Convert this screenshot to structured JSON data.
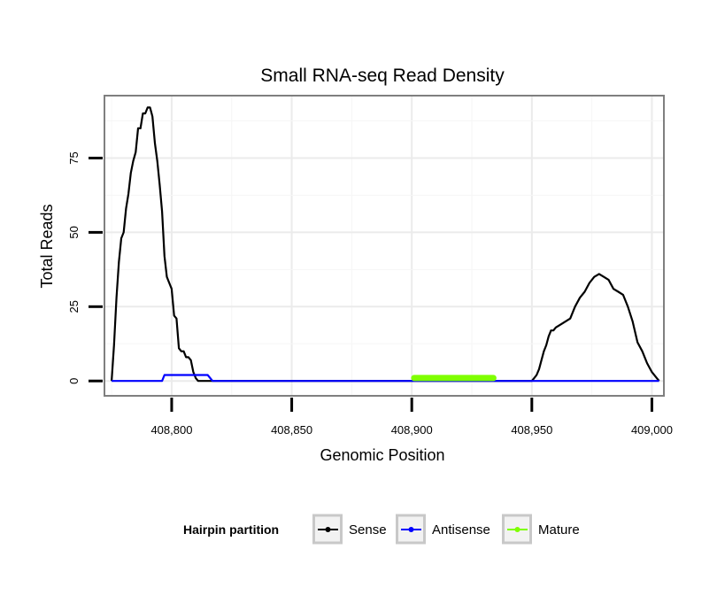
{
  "chart_data": {
    "type": "line",
    "title": "Small RNA-seq Read Density",
    "xlabel": "Genomic Position",
    "ylabel": "Total Reads",
    "xlim": [
      408772,
      409005
    ],
    "ylim": [
      -5,
      96
    ],
    "x_ticks": [
      408800,
      408850,
      408900,
      408950,
      409000
    ],
    "x_tick_labels": [
      "408,800",
      "408,850",
      "408,900",
      "408,950",
      "409,000"
    ],
    "y_ticks": [
      0,
      25,
      50,
      75
    ],
    "y_tick_labels": [
      "0",
      "25",
      "50",
      "75"
    ],
    "grid": true,
    "legend": {
      "title": "Hairpin partition",
      "position": "bottom",
      "entries": [
        {
          "name": "Sense",
          "color": "#000000"
        },
        {
          "name": "Antisense",
          "color": "#0000ff"
        },
        {
          "name": "Mature",
          "color": "#7fff00"
        }
      ]
    },
    "series": [
      {
        "name": "Sense",
        "color": "#000000",
        "x": [
          408775,
          408776,
          408777,
          408778,
          408779,
          408780,
          408781,
          408782,
          408783,
          408784,
          408785,
          408786,
          408787,
          408788,
          408789,
          408790,
          408791,
          408792,
          408793,
          408794,
          408795,
          408796,
          408797,
          408798,
          408799,
          408800,
          408801,
          408802,
          408803,
          408804,
          408805,
          408806,
          408807,
          408808,
          408809,
          408810,
          408811,
          408812,
          408813,
          408814,
          408815,
          408816,
          408817,
          408818,
          408819,
          408820,
          408830,
          408900,
          408934,
          408950,
          408951,
          408952,
          408953,
          408954,
          408955,
          408956,
          408957,
          408958,
          408959,
          408960,
          408962,
          408964,
          408966,
          408968,
          408970,
          408972,
          408974,
          408976,
          408978,
          408980,
          408982,
          408984,
          408986,
          408988,
          408990,
          408992,
          408994,
          408996,
          408998,
          409000,
          409002,
          409003
        ],
        "y": [
          0,
          12,
          28,
          40,
          48,
          50,
          58,
          63,
          70,
          74,
          77,
          85,
          85,
          90,
          90,
          92,
          92,
          89,
          80,
          74,
          66,
          57,
          42,
          35,
          33,
          31,
          22,
          21,
          11,
          10,
          10,
          8,
          8,
          7,
          3,
          1,
          0,
          0,
          0,
          0,
          0,
          0,
          0,
          0,
          0,
          0,
          0,
          0,
          0,
          0,
          1,
          2,
          4,
          7,
          10,
          12,
          15,
          17,
          17,
          18,
          19,
          20,
          21,
          25,
          28,
          30,
          33,
          35,
          36,
          35,
          34,
          31,
          30,
          29,
          25,
          20,
          13,
          10,
          6,
          3,
          1,
          0
        ]
      },
      {
        "name": "Antisense",
        "color": "#0000ff",
        "x": [
          408775,
          408796,
          408797,
          408815,
          408817,
          409003
        ],
        "y": [
          0,
          0,
          2,
          2,
          0,
          0
        ]
      },
      {
        "name": "Mature",
        "color": "#7fff00",
        "x": [
          408901,
          408934
        ],
        "y": [
          1,
          1
        ]
      }
    ]
  }
}
